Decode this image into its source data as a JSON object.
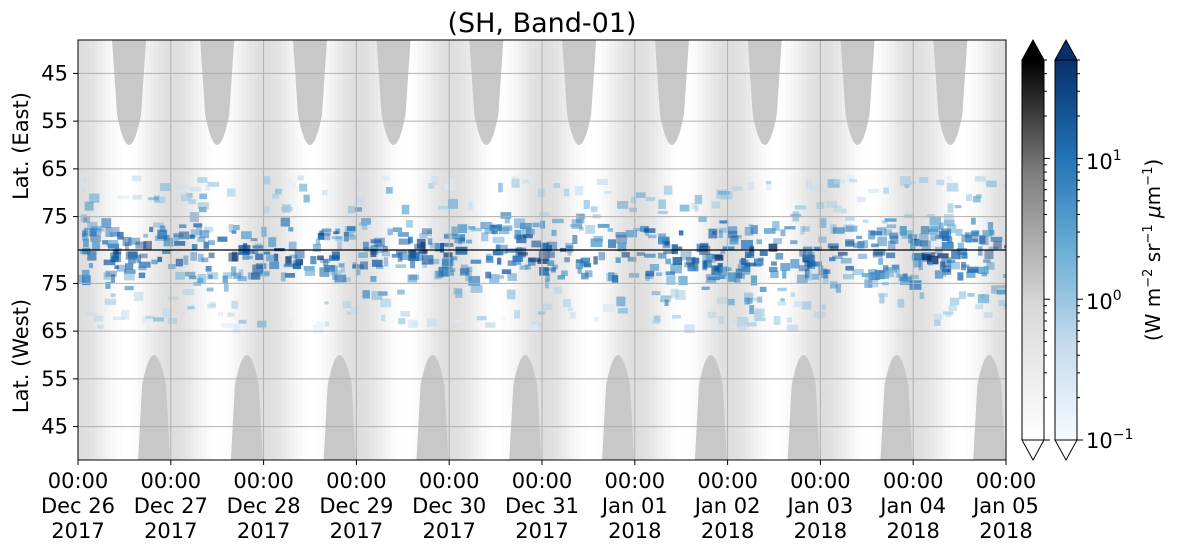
{
  "chart_data": {
    "type": "heatmap",
    "title": "(SH, Band-01)",
    "x_axis": {
      "ticks": [
        {
          "time": "00:00",
          "date": "Dec 26",
          "year": "2017"
        },
        {
          "time": "00:00",
          "date": "Dec 27",
          "year": "2017"
        },
        {
          "time": "00:00",
          "date": "Dec 28",
          "year": "2017"
        },
        {
          "time": "00:00",
          "date": "Dec 29",
          "year": "2017"
        },
        {
          "time": "00:00",
          "date": "Dec 30",
          "year": "2017"
        },
        {
          "time": "00:00",
          "date": "Dec 31",
          "year": "2017"
        },
        {
          "time": "00:00",
          "date": "Jan 01",
          "year": "2018"
        },
        {
          "time": "00:00",
          "date": "Jan 02",
          "year": "2018"
        },
        {
          "time": "00:00",
          "date": "Jan 03",
          "year": "2018"
        },
        {
          "time": "00:00",
          "date": "Jan 04",
          "year": "2018"
        },
        {
          "time": "00:00",
          "date": "Jan 05",
          "year": "2018"
        }
      ],
      "range": [
        "2017-12-26 00:00",
        "2018-01-05 00:00"
      ],
      "grid": true
    },
    "panels": [
      {
        "ylabel": "Lat. (East)",
        "ylim": [
          38,
          82
        ],
        "direction": "increasing-downward",
        "ticks": [
          45,
          55,
          65,
          75
        ]
      },
      {
        "ylabel": "Lat. (West)",
        "ylim": [
          82,
          38
        ],
        "direction": "decreasing-downward",
        "ticks": [
          75,
          65,
          55,
          45
        ]
      }
    ],
    "divider_latitude": 82,
    "colorbars": [
      {
        "name": "gray",
        "scale": "log",
        "range": [
          0.1,
          50
        ],
        "extend": "both"
      },
      {
        "name": "blue",
        "scale": "log",
        "range": [
          0.1,
          50
        ],
        "extend": "both",
        "ticks": [
          {
            "base": "10",
            "exp": "1",
            "value": 10
          },
          {
            "base": "10",
            "exp": "0",
            "value": 1
          },
          {
            "base": "10",
            "exp": "−1",
            "value": 0.1
          }
        ],
        "label": {
          "prefix": "(W m",
          "exp1": "−2",
          "mid": " sr",
          "exp2": "−1",
          "mid2": " ",
          "mu": "μ",
          "unit": "m",
          "exp3": "−1",
          "suffix": ")"
        }
      }
    ],
    "colors": {
      "gray_cmap": [
        "#ffffff",
        "#e0e0e0",
        "#bdbdbd",
        "#969696",
        "#636363",
        "#252525",
        "#000000"
      ],
      "blue_cmap": [
        "#f7fbff",
        "#deebf7",
        "#c6dbef",
        "#9ecae1",
        "#6baed6",
        "#4292c6",
        "#2171b5",
        "#08519c",
        "#08306b"
      ],
      "daylight_gray": "#c8c8c8",
      "background_gray": "#e6e6e6",
      "grid": "#b0b0b0"
    }
  }
}
